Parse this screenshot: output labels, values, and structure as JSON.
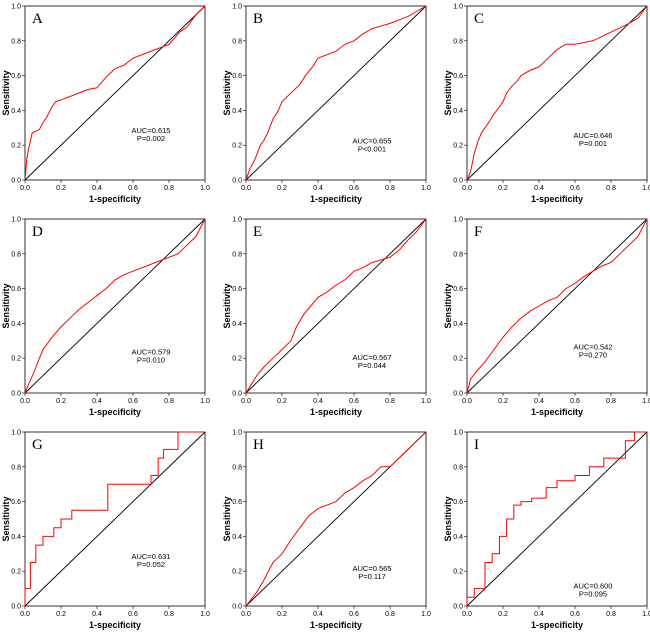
{
  "figure": {
    "layout": {
      "rows": 3,
      "cols": 3
    }
  },
  "chart_data": [
    {
      "type": "line",
      "panel": "A",
      "title": "",
      "xlabel": "1-specificity",
      "ylabel": "Sensitivity",
      "xlim": [
        0,
        1
      ],
      "ylim": [
        0,
        1
      ],
      "grid": false,
      "legend": "none",
      "xticks": [
        "0.0",
        "0.2",
        "0.4",
        "0.6",
        "0.8",
        "1.0"
      ],
      "yticks": [
        "0.0",
        "0.2",
        "0.4",
        "0.6",
        "0.8",
        "1.0"
      ],
      "annotations": [
        "AUC=0.615",
        "P=0.002"
      ],
      "series": [
        {
          "name": "ROC",
          "color": "#ff0000",
          "x": [
            0,
            0.01,
            0.02,
            0.04,
            0.08,
            0.1,
            0.12,
            0.15,
            0.17,
            0.2,
            0.25,
            0.3,
            0.35,
            0.4,
            0.45,
            0.5,
            0.55,
            0.6,
            0.7,
            0.8,
            0.86,
            0.9,
            0.95,
            1.0
          ],
          "y": [
            0,
            0.12,
            0.18,
            0.27,
            0.29,
            0.33,
            0.36,
            0.42,
            0.45,
            0.46,
            0.48,
            0.5,
            0.52,
            0.53,
            0.59,
            0.64,
            0.66,
            0.7,
            0.74,
            0.78,
            0.85,
            0.88,
            0.95,
            1.0
          ]
        },
        {
          "name": "Reference",
          "color": "#000000",
          "x": [
            0,
            1
          ],
          "y": [
            0,
            1
          ]
        }
      ]
    },
    {
      "type": "line",
      "panel": "B",
      "title": "",
      "xlabel": "1-specificity",
      "ylabel": "Sensitivity",
      "xlim": [
        0,
        1
      ],
      "ylim": [
        0,
        1
      ],
      "grid": false,
      "legend": "none",
      "xticks": [
        "0.0",
        "0.2",
        "0.4",
        "0.6",
        "0.8",
        "1.0"
      ],
      "yticks": [
        "0.0",
        "0.2",
        "0.4",
        "0.6",
        "0.8",
        "1.0"
      ],
      "annotations": [
        "AUC=0.655",
        "P<0.001"
      ],
      "series": [
        {
          "name": "ROC",
          "color": "#ff0000",
          "x": [
            0,
            0.02,
            0.05,
            0.08,
            0.1,
            0.12,
            0.15,
            0.18,
            0.2,
            0.25,
            0.3,
            0.33,
            0.37,
            0.4,
            0.45,
            0.5,
            0.55,
            0.6,
            0.65,
            0.7,
            0.8,
            0.9,
            1.0
          ],
          "y": [
            0,
            0.06,
            0.12,
            0.2,
            0.23,
            0.27,
            0.35,
            0.4,
            0.45,
            0.5,
            0.55,
            0.6,
            0.65,
            0.7,
            0.72,
            0.74,
            0.78,
            0.8,
            0.84,
            0.87,
            0.9,
            0.94,
            1.0
          ]
        },
        {
          "name": "Reference",
          "color": "#000000",
          "x": [
            0,
            1
          ],
          "y": [
            0,
            1
          ]
        }
      ]
    },
    {
      "type": "line",
      "panel": "C",
      "title": "",
      "xlabel": "1-specificity",
      "ylabel": "Sensitivity",
      "xlim": [
        0,
        1
      ],
      "ylim": [
        0,
        1
      ],
      "grid": false,
      "legend": "none",
      "xticks": [
        "0.0",
        "0.2",
        "0.4",
        "0.6",
        "0.8",
        "1.0"
      ],
      "yticks": [
        "0.0",
        "0.2",
        "0.4",
        "0.6",
        "0.8",
        "1.0"
      ],
      "annotations": [
        "AUC=0.646",
        "P=0.001"
      ],
      "series": [
        {
          "name": "ROC",
          "color": "#ff0000",
          "x": [
            0,
            0.02,
            0.04,
            0.06,
            0.08,
            0.1,
            0.12,
            0.15,
            0.18,
            0.2,
            0.22,
            0.25,
            0.28,
            0.3,
            0.35,
            0.4,
            0.45,
            0.5,
            0.55,
            0.6,
            0.7,
            0.8,
            0.9,
            0.95,
            1.0
          ],
          "y": [
            0,
            0.05,
            0.15,
            0.22,
            0.27,
            0.3,
            0.33,
            0.38,
            0.42,
            0.45,
            0.5,
            0.54,
            0.57,
            0.6,
            0.63,
            0.65,
            0.7,
            0.75,
            0.78,
            0.78,
            0.8,
            0.85,
            0.9,
            0.93,
            1.0
          ]
        },
        {
          "name": "Reference",
          "color": "#000000",
          "x": [
            0,
            1
          ],
          "y": [
            0,
            1
          ]
        }
      ]
    },
    {
      "type": "line",
      "panel": "D",
      "title": "",
      "xlabel": "1-specificity",
      "ylabel": "Sensitivity",
      "xlim": [
        0,
        1
      ],
      "ylim": [
        0,
        1
      ],
      "grid": false,
      "legend": "none",
      "xticks": [
        "0.0",
        "0.2",
        "0.4",
        "0.6",
        "0.8",
        "1.0"
      ],
      "yticks": [
        "0.0",
        "0.2",
        "0.4",
        "0.6",
        "0.8",
        "1.0"
      ],
      "annotations": [
        "AUC=0.579",
        "P=0.010"
      ],
      "series": [
        {
          "name": "ROC",
          "color": "#ff0000",
          "x": [
            0,
            0.02,
            0.05,
            0.08,
            0.1,
            0.15,
            0.2,
            0.25,
            0.3,
            0.35,
            0.4,
            0.45,
            0.5,
            0.55,
            0.6,
            0.7,
            0.75,
            0.8,
            0.85,
            0.9,
            0.95,
            1.0
          ],
          "y": [
            0,
            0.05,
            0.12,
            0.2,
            0.25,
            0.32,
            0.38,
            0.43,
            0.48,
            0.52,
            0.56,
            0.6,
            0.65,
            0.68,
            0.7,
            0.74,
            0.76,
            0.78,
            0.8,
            0.85,
            0.9,
            1.0
          ]
        },
        {
          "name": "Reference",
          "color": "#000000",
          "x": [
            0,
            1
          ],
          "y": [
            0,
            1
          ]
        }
      ]
    },
    {
      "type": "line",
      "panel": "E",
      "title": "",
      "xlabel": "1-specificity",
      "ylabel": "Sensitivity",
      "xlim": [
        0,
        1
      ],
      "ylim": [
        0,
        1
      ],
      "grid": false,
      "legend": "none",
      "xticks": [
        "0.0",
        "0.2",
        "0.4",
        "0.6",
        "0.8",
        "1.0"
      ],
      "yticks": [
        "0.0",
        "0.2",
        "0.4",
        "0.6",
        "0.8",
        "1.0"
      ],
      "annotations": [
        "AUC=0.567",
        "P=0.044"
      ],
      "series": [
        {
          "name": "ROC",
          "color": "#ff0000",
          "x": [
            0,
            0.03,
            0.06,
            0.1,
            0.15,
            0.2,
            0.25,
            0.28,
            0.32,
            0.36,
            0.4,
            0.45,
            0.5,
            0.55,
            0.6,
            0.65,
            0.7,
            0.8,
            0.85,
            0.9,
            0.95,
            1.0
          ],
          "y": [
            0,
            0.05,
            0.1,
            0.15,
            0.2,
            0.25,
            0.3,
            0.38,
            0.45,
            0.5,
            0.55,
            0.58,
            0.62,
            0.65,
            0.7,
            0.72,
            0.75,
            0.78,
            0.82,
            0.88,
            0.93,
            1.0
          ]
        },
        {
          "name": "Reference",
          "color": "#000000",
          "x": [
            0,
            1
          ],
          "y": [
            0,
            1
          ]
        }
      ]
    },
    {
      "type": "line",
      "panel": "F",
      "title": "",
      "xlabel": "1-specificity",
      "ylabel": "Sensitivity",
      "xlim": [
        0,
        1
      ],
      "ylim": [
        0,
        1
      ],
      "grid": false,
      "legend": "none",
      "xticks": [
        "0.0",
        "0.2",
        "0.4",
        "0.6",
        "0.8",
        "1.0"
      ],
      "yticks": [
        "0.0",
        "0.2",
        "0.4",
        "0.6",
        "0.8",
        "1.0"
      ],
      "annotations": [
        "AUC=0.542",
        "P=0.270"
      ],
      "series": [
        {
          "name": "ROC",
          "color": "#ff0000",
          "x": [
            0,
            0.02,
            0.05,
            0.1,
            0.15,
            0.2,
            0.25,
            0.3,
            0.35,
            0.4,
            0.45,
            0.5,
            0.55,
            0.6,
            0.65,
            0.7,
            0.75,
            0.8,
            0.85,
            0.9,
            0.95,
            1.0
          ],
          "y": [
            0,
            0.08,
            0.12,
            0.18,
            0.25,
            0.32,
            0.38,
            0.43,
            0.47,
            0.5,
            0.53,
            0.55,
            0.6,
            0.63,
            0.67,
            0.7,
            0.73,
            0.75,
            0.8,
            0.85,
            0.9,
            1.0
          ]
        },
        {
          "name": "Reference",
          "color": "#000000",
          "x": [
            0,
            1
          ],
          "y": [
            0,
            1
          ]
        }
      ]
    },
    {
      "type": "line",
      "panel": "G",
      "title": "",
      "xlabel": "1-specificity",
      "ylabel": "Sensitivity",
      "xlim": [
        0,
        1
      ],
      "ylim": [
        0,
        1
      ],
      "grid": false,
      "legend": "none",
      "xticks": [
        "0.0",
        "0.2",
        "0.4",
        "0.6",
        "0.8",
        "1.0"
      ],
      "yticks": [
        "0.0",
        "0.2",
        "0.4",
        "0.6",
        "0.8",
        "1.0"
      ],
      "annotations": [
        "AUC=0.631",
        "P=0.052"
      ],
      "series": [
        {
          "name": "ROC",
          "color": "#ff0000",
          "x": [
            0,
            0.0,
            0.03,
            0.03,
            0.06,
            0.06,
            0.1,
            0.1,
            0.16,
            0.16,
            0.2,
            0.2,
            0.26,
            0.26,
            0.46,
            0.46,
            0.7,
            0.7,
            0.74,
            0.74,
            0.77,
            0.77,
            0.85,
            0.85,
            1.0
          ],
          "y": [
            0,
            0.1,
            0.1,
            0.25,
            0.25,
            0.35,
            0.35,
            0.4,
            0.4,
            0.45,
            0.45,
            0.5,
            0.5,
            0.55,
            0.55,
            0.7,
            0.7,
            0.75,
            0.75,
            0.85,
            0.85,
            0.9,
            0.9,
            1.0,
            1.0
          ]
        },
        {
          "name": "Reference",
          "color": "#000000",
          "x": [
            0,
            1
          ],
          "y": [
            0,
            1
          ]
        }
      ]
    },
    {
      "type": "line",
      "panel": "H",
      "title": "",
      "xlabel": "1-specificity",
      "ylabel": "Sensitivity",
      "xlim": [
        0,
        1
      ],
      "ylim": [
        0,
        1
      ],
      "grid": false,
      "legend": "none",
      "xticks": [
        "0.0",
        "0.2",
        "0.4",
        "0.6",
        "0.8",
        "1.0"
      ],
      "yticks": [
        "0.0",
        "0.2",
        "0.4",
        "0.6",
        "0.8",
        "1.0"
      ],
      "annotations": [
        "AUC=0.565",
        "P=0.117"
      ],
      "series": [
        {
          "name": "ROC",
          "color": "#ff0000",
          "x": [
            0,
            0.03,
            0.06,
            0.1,
            0.15,
            0.2,
            0.25,
            0.3,
            0.35,
            0.4,
            0.45,
            0.5,
            0.55,
            0.6,
            0.65,
            0.7,
            0.75,
            0.8,
            0.85,
            0.9,
            0.95,
            1.0
          ],
          "y": [
            0,
            0.04,
            0.08,
            0.15,
            0.25,
            0.3,
            0.38,
            0.45,
            0.52,
            0.56,
            0.58,
            0.6,
            0.65,
            0.68,
            0.72,
            0.75,
            0.8,
            0.8,
            0.85,
            0.9,
            0.95,
            1.0
          ]
        },
        {
          "name": "Reference",
          "color": "#000000",
          "x": [
            0,
            1
          ],
          "y": [
            0,
            1
          ]
        }
      ]
    },
    {
      "type": "line",
      "panel": "I",
      "title": "",
      "xlabel": "1-specificity",
      "ylabel": "Sensitivity",
      "xlim": [
        0,
        1
      ],
      "ylim": [
        0,
        1
      ],
      "grid": false,
      "legend": "none",
      "xticks": [
        "0.0",
        "0.2",
        "0.4",
        "0.6",
        "0.8",
        "1.0"
      ],
      "yticks": [
        "0.0",
        "0.2",
        "0.4",
        "0.6",
        "0.8",
        "1.0"
      ],
      "annotations": [
        "AUC=0.600",
        "P=0.095"
      ],
      "series": [
        {
          "name": "ROC",
          "color": "#ff0000",
          "x": [
            0,
            0.0,
            0.04,
            0.04,
            0.1,
            0.1,
            0.14,
            0.14,
            0.18,
            0.18,
            0.22,
            0.22,
            0.26,
            0.26,
            0.3,
            0.3,
            0.36,
            0.36,
            0.44,
            0.44,
            0.5,
            0.5,
            0.6,
            0.6,
            0.68,
            0.68,
            0.76,
            0.76,
            0.88,
            0.88,
            0.93,
            0.93,
            1.0
          ],
          "y": [
            0,
            0.05,
            0.05,
            0.1,
            0.1,
            0.25,
            0.25,
            0.3,
            0.3,
            0.4,
            0.4,
            0.5,
            0.5,
            0.58,
            0.58,
            0.6,
            0.6,
            0.62,
            0.62,
            0.68,
            0.68,
            0.72,
            0.72,
            0.75,
            0.75,
            0.8,
            0.8,
            0.85,
            0.85,
            0.95,
            0.95,
            1.0,
            1.0
          ]
        },
        {
          "name": "Reference",
          "color": "#000000",
          "x": [
            0,
            1
          ],
          "y": [
            0,
            1
          ]
        }
      ]
    }
  ]
}
